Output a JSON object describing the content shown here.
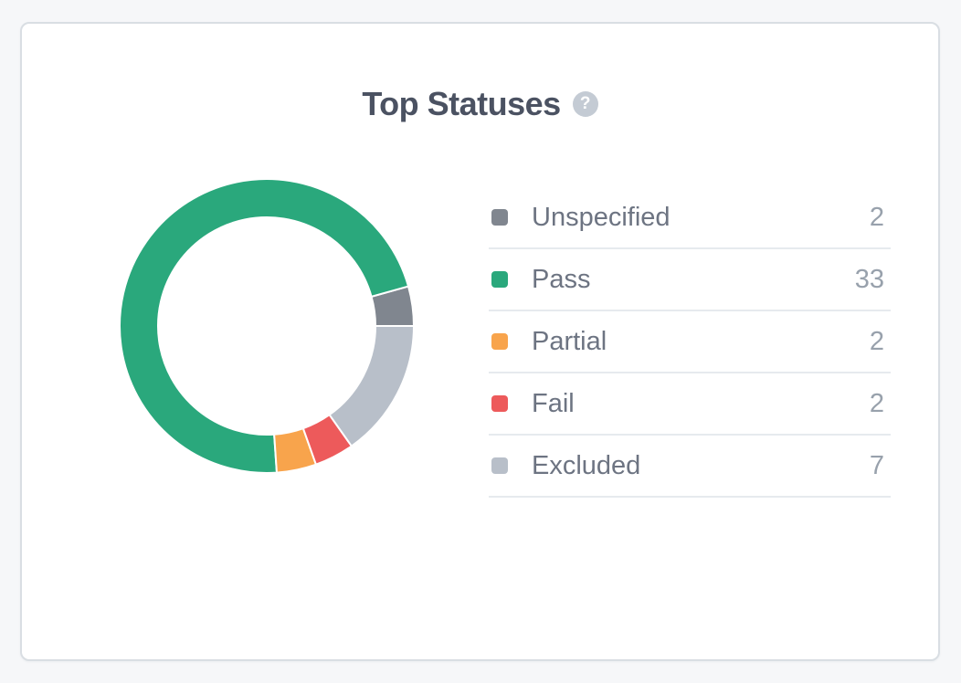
{
  "card": {
    "title": "Top Statuses",
    "help_icon_glyph": "?"
  },
  "chart_data": {
    "type": "donut",
    "title": "Top Statuses",
    "total": 46,
    "start_angle_deg": 90,
    "direction": "counterclockwise",
    "inner_radius_ratio": 0.735,
    "legend_position": "right",
    "segment_gap_color": "#ffffff",
    "items": [
      {
        "label": "Unspecified",
        "value": 2,
        "color": "#80868f"
      },
      {
        "label": "Pass",
        "value": 33,
        "color": "#2aa87c"
      },
      {
        "label": "Partial",
        "value": 2,
        "color": "#f8a44c"
      },
      {
        "label": "Fail",
        "value": 2,
        "color": "#ed5a5b"
      },
      {
        "label": "Excluded",
        "value": 7,
        "color": "#b8bfc9"
      }
    ]
  }
}
